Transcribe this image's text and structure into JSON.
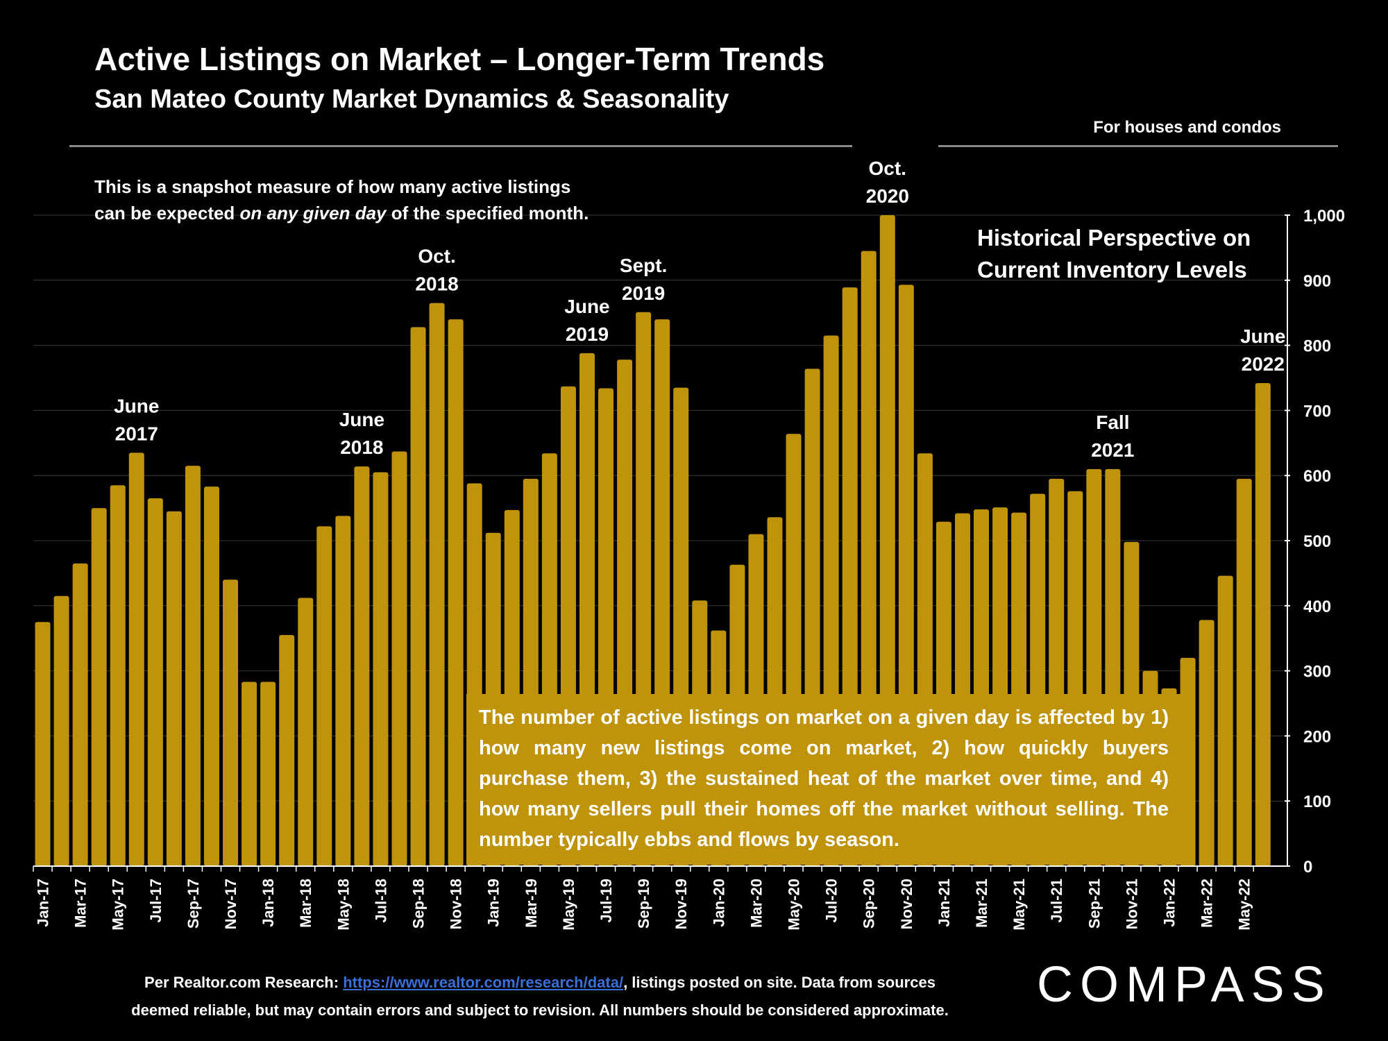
{
  "header": {
    "title": "Active Listings on Market – Longer-Term Trends",
    "subtitle": "San Mateo County Market Dynamics & Seasonality",
    "scope_note": "For houses and condos"
  },
  "snapshot_note": {
    "line1": "This is a snapshot measure of how many active listings",
    "line2_pre": "can be expected ",
    "line2_em": "on any given day",
    "line2_post": " of the specified month."
  },
  "historical_note": {
    "line1": "Historical Perspective on",
    "line2": "Current Inventory Levels"
  },
  "explain_text": "The number of active listings on market on a given day is affected by 1) how many new listings come on market, 2) how quickly buyers purchase them, 3) the sustained heat of the market over time, and 4) how many sellers pull their homes off the market without selling. The number typically ebbs and flows by season.",
  "footer": {
    "pre": "Per Realtor.com Research:  ",
    "link": "https://www.realtor.com/research/data/",
    "post": ", listings posted on site. Data from sources",
    "line2": "deemed reliable, but may contain errors and subject to revision. All numbers should be considered approximate."
  },
  "logo": "COMPASS",
  "colors": {
    "bar": "#bf930c",
    "background": "#000000",
    "grid": "#3a3a3a",
    "rule": "#8a8a8a",
    "link": "#3b6fd8"
  },
  "chart_data": {
    "type": "bar",
    "ylim": [
      0,
      1000
    ],
    "yticks": [
      "0",
      "100",
      "200",
      "300",
      "400",
      "500",
      "600",
      "700",
      "800",
      "900",
      "1,000"
    ],
    "categories": [
      "Jan-17",
      "Feb-17",
      "Mar-17",
      "Apr-17",
      "May-17",
      "Jun-17",
      "Jul-17",
      "Aug-17",
      "Sep-17",
      "Oct-17",
      "Nov-17",
      "Dec-17",
      "Jan-18",
      "Feb-18",
      "Mar-18",
      "Apr-18",
      "May-18",
      "Jun-18",
      "Jul-18",
      "Aug-18",
      "Sep-18",
      "Oct-18",
      "Nov-18",
      "Dec-18",
      "Jan-19",
      "Feb-19",
      "Mar-19",
      "Apr-19",
      "May-19",
      "Jun-19",
      "Jul-19",
      "Aug-19",
      "Sep-19",
      "Oct-19",
      "Nov-19",
      "Dec-19",
      "Jan-20",
      "Feb-20",
      "Mar-20",
      "Apr-20",
      "May-20",
      "Jun-20",
      "Jul-20",
      "Aug-20",
      "Sep-20",
      "Oct-20",
      "Nov-20",
      "Dec-20",
      "Jan-21",
      "Feb-21",
      "Mar-21",
      "Apr-21",
      "May-21",
      "Jun-21",
      "Jul-21",
      "Aug-21",
      "Sep-21",
      "Oct-21",
      "Nov-21",
      "Dec-21",
      "Jan-22",
      "Feb-22",
      "Mar-22",
      "Apr-22",
      "May-22",
      "Jun-22"
    ],
    "visible_tick_labels": [
      "Jan-17",
      "Mar-17",
      "May-17",
      "Jul-17",
      "Sep-17",
      "Nov-17",
      "Jan-18",
      "Mar-18",
      "May-18",
      "Jul-18",
      "Sep-18",
      "Nov-18",
      "Jan-19",
      "Mar-19",
      "May-19",
      "Jul-19",
      "Sep-19",
      "Nov-19",
      "Jan-20",
      "Mar-20",
      "May-20",
      "Jul-20",
      "Sep-20",
      "Nov-20",
      "Jan-21",
      "Mar-21",
      "May-21",
      "Jul-21",
      "Sep-21",
      "Nov-21",
      "Jan-22",
      "Mar-22",
      "May-22"
    ],
    "values": [
      375,
      415,
      465,
      550,
      585,
      635,
      565,
      545,
      615,
      583,
      440,
      283,
      283,
      355,
      412,
      522,
      538,
      614,
      605,
      637,
      828,
      865,
      840,
      588,
      512,
      547,
      595,
      634,
      737,
      788,
      734,
      778,
      851,
      840,
      735,
      408,
      362,
      463,
      510,
      536,
      664,
      764,
      815,
      889,
      945,
      1000,
      893,
      634,
      529,
      542,
      548,
      551,
      543,
      572,
      595,
      576,
      610,
      610,
      498,
      300,
      273,
      320,
      378,
      446,
      595,
      742
    ],
    "annotations": [
      {
        "index": 5,
        "line1": "June",
        "line2": "2017"
      },
      {
        "index": 17,
        "line1": "June",
        "line2": "2018"
      },
      {
        "index": 21,
        "line1": "Oct.",
        "line2": "2018"
      },
      {
        "index": 29,
        "line1": "June",
        "line2": "2019"
      },
      {
        "index": 32,
        "line1": "Sept.",
        "line2": "2019"
      },
      {
        "index": 45,
        "line1": "Oct.",
        "line2": "2020"
      },
      {
        "index": 57,
        "line1": "Fall",
        "line2": "2021"
      },
      {
        "index": 65,
        "line1": "June",
        "line2": "2022"
      }
    ]
  }
}
